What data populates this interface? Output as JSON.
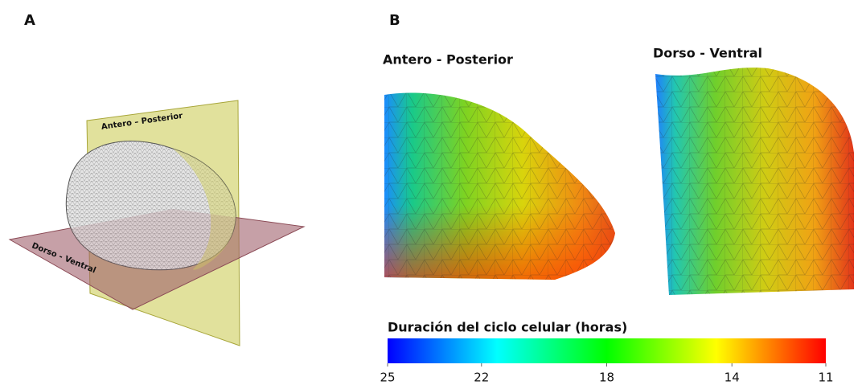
{
  "panel_a": {
    "label": "A",
    "plane_labels": [
      "Antero – Posterior",
      "Dorso - Ventral"
    ]
  },
  "panel_b": {
    "label": "B",
    "views": [
      "Antero - Posterior",
      "Dorso - Ventral"
    ],
    "colorbar": {
      "title": "Duración del ciclo celular (horas)",
      "lim": [
        25,
        11
      ],
      "ticks": [
        25,
        22,
        18,
        14,
        11
      ],
      "colors": [
        "#0000ff",
        "#00ffff",
        "#00ff00",
        "#ffff00",
        "#ff0000"
      ]
    }
  }
}
